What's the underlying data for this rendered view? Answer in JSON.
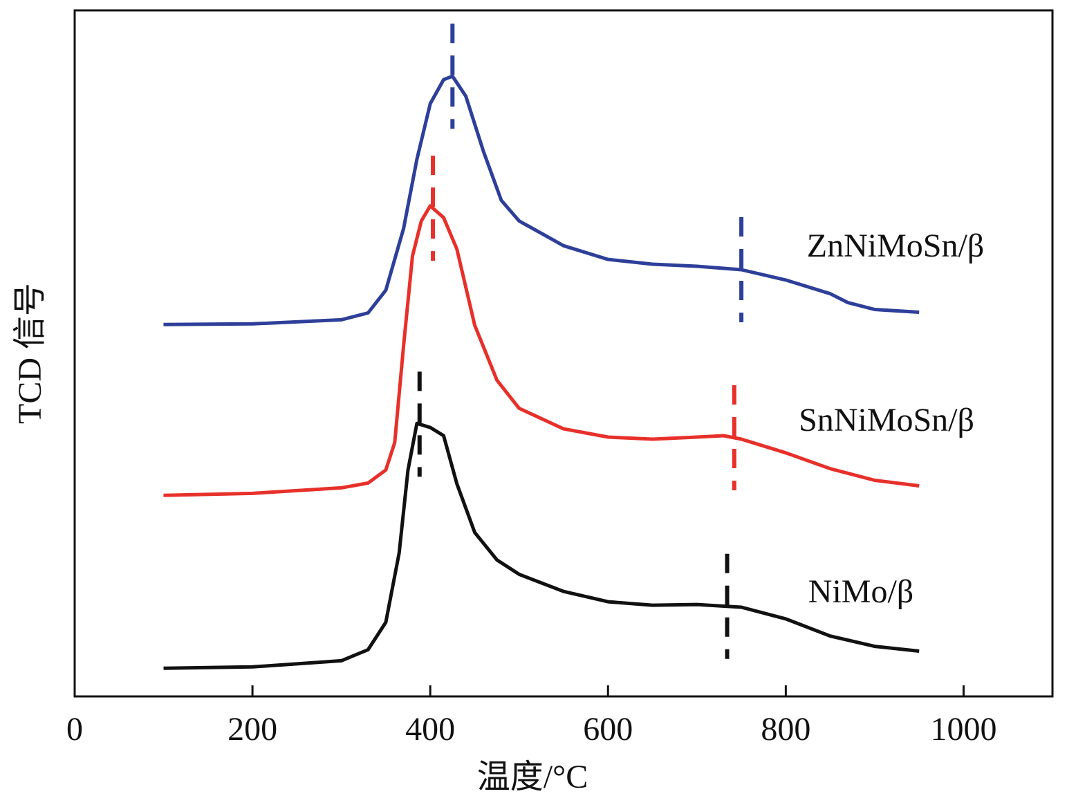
{
  "chart_data": {
    "type": "line",
    "xlabel": "温度/°C",
    "ylabel": "TCD 信号",
    "xlim": [
      0,
      1100
    ],
    "xticks": [
      0,
      200,
      400,
      600,
      800,
      1000
    ],
    "ylim": [
      0,
      100
    ],
    "series": [
      {
        "name": "ZnNiMoSn/β",
        "color": "#2e3f9a",
        "x": [
          100,
          200,
          300,
          330,
          350,
          370,
          385,
          400,
          415,
          425,
          440,
          460,
          480,
          500,
          550,
          600,
          650,
          700,
          750,
          800,
          850,
          870,
          900,
          950
        ],
        "values": [
          54.2,
          54.3,
          54.9,
          55.9,
          59.2,
          68.2,
          78.3,
          86.4,
          89.9,
          90.4,
          87.5,
          79.4,
          72.3,
          69.3,
          65.7,
          63.7,
          63.0,
          62.7,
          62.2,
          60.7,
          58.7,
          57.4,
          56.4,
          56.0
        ],
        "peaks": [
          425,
          750
        ]
      },
      {
        "name": "SnNiMoSn/β",
        "color": "#e8302a",
        "x": [
          100,
          200,
          300,
          330,
          350,
          360,
          370,
          380,
          390,
          400,
          415,
          430,
          450,
          475,
          500,
          550,
          600,
          650,
          700,
          730,
          750,
          800,
          850,
          900,
          950
        ],
        "values": [
          29.3,
          29.6,
          30.4,
          31.1,
          33.0,
          37.0,
          51.1,
          64.2,
          69.3,
          71.5,
          69.8,
          65.2,
          54.1,
          46.1,
          42.0,
          39.0,
          37.8,
          37.5,
          37.8,
          38.0,
          37.5,
          35.5,
          33.2,
          31.5,
          30.7
        ],
        "peaks": [
          403,
          742
        ]
      },
      {
        "name": "NiMo/β",
        "color": "#111111",
        "x": [
          100,
          200,
          300,
          330,
          350,
          365,
          375,
          385,
          400,
          415,
          430,
          450,
          475,
          500,
          550,
          600,
          650,
          700,
          750,
          800,
          850,
          900,
          950
        ],
        "values": [
          4.1,
          4.3,
          5.2,
          6.8,
          10.8,
          20.9,
          33.0,
          39.8,
          39.2,
          38.0,
          31.0,
          23.9,
          19.9,
          17.8,
          15.3,
          13.8,
          13.3,
          13.4,
          13.0,
          11.3,
          8.8,
          7.3,
          6.6
        ],
        "peaks": [
          388,
          734
        ]
      }
    ]
  }
}
